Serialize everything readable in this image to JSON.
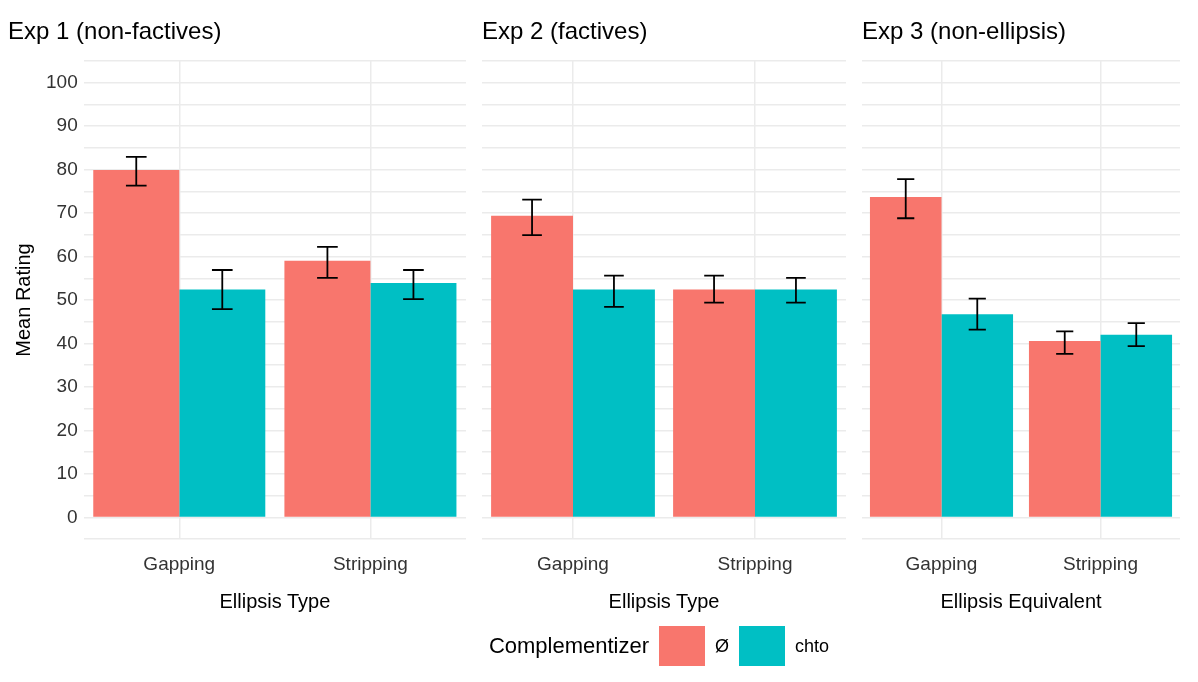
{
  "chart_data": [
    {
      "type": "bar",
      "title": "Exp 1 (non-factives)",
      "xlabel": "Ellipsis Type",
      "ylabel": "Mean Rating",
      "legend_title": "Complementizer",
      "legend": "bottom",
      "grid": true,
      "categories": [
        "Gapping",
        "Stripping"
      ],
      "ylim": [
        -5,
        105
      ],
      "yticks": [
        {
          "value": -5,
          "label": null
        },
        0,
        {
          "value": 5,
          "label": null
        },
        10,
        {
          "value": 15,
          "label": null
        },
        20,
        {
          "value": 25,
          "label": null
        },
        30,
        {
          "value": 35,
          "label": null
        },
        40,
        {
          "value": 45,
          "label": null
        },
        50,
        {
          "value": 55,
          "label": null
        },
        60,
        {
          "value": 65,
          "label": null
        },
        70,
        {
          "value": 75,
          "label": null
        },
        80,
        {
          "value": 85,
          "label": null
        },
        90,
        {
          "value": 95,
          "label": null
        },
        100,
        {
          "value": 105,
          "label": null
        }
      ],
      "series": [
        {
          "name": "Ø",
          "color": "#f8766d",
          "values": [
            79.9,
            59.0
          ],
          "errors": [
            [
              76.3,
              82.9
            ],
            [
              55.1,
              62.2
            ]
          ]
        },
        {
          "name": "chto",
          "color": "#00bfc4",
          "values": [
            52.4,
            53.9
          ],
          "errors": [
            [
              47.9,
              56.9
            ],
            [
              50.2,
              56.9
            ]
          ]
        }
      ]
    },
    {
      "type": "bar",
      "title": "Exp 2 (factives)",
      "xlabel": "Ellipsis Type",
      "grid": true,
      "tick_labels": "x",
      "categories": [
        "Gapping",
        "Stripping"
      ],
      "ylim": [
        -5,
        105
      ],
      "yticks": [
        {
          "value": -5,
          "label": null
        },
        0,
        {
          "value": 5,
          "label": null
        },
        10,
        {
          "value": 15,
          "label": null
        },
        20,
        {
          "value": 25,
          "label": null
        },
        30,
        {
          "value": 35,
          "label": null
        },
        40,
        {
          "value": 45,
          "label": null
        },
        50,
        {
          "value": 55,
          "label": null
        },
        60,
        {
          "value": 65,
          "label": null
        },
        70,
        {
          "value": 75,
          "label": null
        },
        80,
        {
          "value": 85,
          "label": null
        },
        90,
        {
          "value": 95,
          "label": null
        },
        100,
        {
          "value": 105,
          "label": null
        }
      ],
      "series": [
        {
          "color": "#f8766d",
          "values": [
            69.4,
            52.4
          ],
          "errors": [
            [
              64.9,
              73.1
            ],
            [
              49.4,
              55.6
            ]
          ]
        },
        {
          "color": "#00bfc4",
          "values": [
            52.4,
            52.4
          ],
          "errors": [
            [
              48.4,
              55.6
            ],
            [
              49.4,
              55.1
            ]
          ]
        }
      ]
    },
    {
      "type": "bar",
      "title": "Exp 3 (non-ellipsis)",
      "xlabel": "Ellipsis Equivalent",
      "grid": true,
      "tick_labels": "x",
      "categories": [
        "Gapping",
        "Stripping"
      ],
      "ylim": [
        -5,
        105
      ],
      "yticks": [
        {
          "value": -5,
          "label": null
        },
        0,
        {
          "value": 5,
          "label": null
        },
        10,
        {
          "value": 15,
          "label": null
        },
        20,
        {
          "value": 25,
          "label": null
        },
        30,
        {
          "value": 35,
          "label": null
        },
        40,
        {
          "value": 45,
          "label": null
        },
        50,
        {
          "value": 55,
          "label": null
        },
        60,
        {
          "value": 65,
          "label": null
        },
        70,
        {
          "value": 75,
          "label": null
        },
        80,
        {
          "value": 85,
          "label": null
        },
        90,
        {
          "value": 95,
          "label": null
        },
        100,
        {
          "value": 105,
          "label": null
        }
      ],
      "series": [
        {
          "color": "#f8766d",
          "values": [
            73.7,
            40.6
          ],
          "errors": [
            [
              68.8,
              77.8
            ],
            [
              37.6,
              42.8
            ]
          ]
        },
        {
          "color": "#00bfc4",
          "values": [
            46.7,
            42.0
          ],
          "errors": [
            [
              43.2,
              50.3
            ],
            [
              39.4,
              44.7
            ]
          ]
        }
      ]
    }
  ]
}
